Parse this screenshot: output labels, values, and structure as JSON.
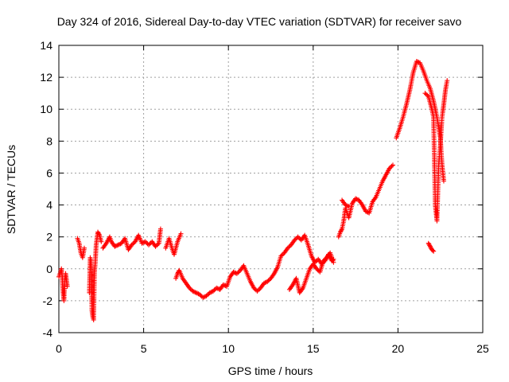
{
  "chart_data": {
    "type": "scatter",
    "title": "Day 324 of 2016, Sidereal Day-to-day VTEC variation (SDTVAR) for receiver savo",
    "xlabel": "GPS time / hours",
    "ylabel": "SDTVAR / TECUs",
    "xlim": [
      0,
      25
    ],
    "ylim": [
      -4,
      14
    ],
    "xticks": [
      0,
      5,
      10,
      15,
      20,
      25
    ],
    "yticks": [
      -4,
      -2,
      0,
      2,
      4,
      6,
      8,
      10,
      12,
      14
    ],
    "grid": true,
    "marker": "+",
    "color": "#ff0000",
    "segments": [
      [
        [
          0.0,
          -0.5
        ],
        [
          0.1,
          -0.2
        ],
        [
          0.15,
          0.0
        ],
        [
          0.2,
          -0.5
        ],
        [
          0.25,
          -1.5
        ],
        [
          0.3,
          -2.0
        ],
        [
          0.35,
          -0.8
        ],
        [
          0.4,
          -0.3
        ],
        [
          0.5,
          -1.1
        ]
      ],
      [
        [
          1.1,
          1.9
        ],
        [
          1.2,
          1.6
        ],
        [
          1.3,
          1.0
        ],
        [
          1.4,
          0.7
        ],
        [
          1.5,
          1.3
        ]
      ],
      [
        [
          1.8,
          -1.5
        ],
        [
          1.85,
          0.7
        ],
        [
          1.9,
          0.5
        ],
        [
          1.95,
          -2.6
        ],
        [
          2.0,
          -3.0
        ],
        [
          2.05,
          -3.2
        ],
        [
          2.1,
          -0.2
        ],
        [
          2.15,
          0.4
        ],
        [
          2.2,
          1.5
        ],
        [
          2.3,
          2.3
        ],
        [
          2.4,
          2.1
        ],
        [
          2.5,
          1.7
        ]
      ],
      [
        [
          2.6,
          1.3
        ],
        [
          2.8,
          1.6
        ],
        [
          3.0,
          2.0
        ],
        [
          3.1,
          1.7
        ],
        [
          3.3,
          1.4
        ],
        [
          3.5,
          1.5
        ],
        [
          3.7,
          1.6
        ],
        [
          3.9,
          1.9
        ],
        [
          4.1,
          1.2
        ],
        [
          4.3,
          1.5
        ],
        [
          4.5,
          1.7
        ],
        [
          4.7,
          2.1
        ],
        [
          4.9,
          1.6
        ],
        [
          5.1,
          1.7
        ],
        [
          5.3,
          1.5
        ],
        [
          5.5,
          1.7
        ],
        [
          5.7,
          1.4
        ],
        [
          5.9,
          1.6
        ],
        [
          6.0,
          2.5
        ]
      ],
      [
        [
          6.3,
          1.3
        ],
        [
          6.5,
          1.9
        ],
        [
          6.7,
          1.2
        ],
        [
          6.8,
          0.9
        ],
        [
          7.0,
          1.7
        ],
        [
          7.2,
          2.2
        ]
      ],
      [
        [
          6.9,
          -0.6
        ],
        [
          7.0,
          -0.3
        ],
        [
          7.1,
          -0.1
        ],
        [
          7.3,
          -0.6
        ],
        [
          7.5,
          -0.9
        ],
        [
          7.7,
          -1.2
        ],
        [
          7.9,
          -1.4
        ],
        [
          8.1,
          -1.5
        ],
        [
          8.3,
          -1.6
        ],
        [
          8.5,
          -1.8
        ],
        [
          8.7,
          -1.7
        ],
        [
          8.9,
          -1.5
        ],
        [
          9.1,
          -1.4
        ],
        [
          9.3,
          -1.2
        ],
        [
          9.5,
          -1.3
        ],
        [
          9.7,
          -1.0
        ],
        [
          9.9,
          -1.1
        ],
        [
          10.1,
          -0.5
        ],
        [
          10.3,
          -0.2
        ],
        [
          10.5,
          -0.3
        ],
        [
          10.7,
          -0.1
        ],
        [
          10.9,
          0.2
        ],
        [
          11.1,
          -0.3
        ],
        [
          11.3,
          -0.8
        ],
        [
          11.5,
          -1.2
        ],
        [
          11.7,
          -1.4
        ],
        [
          11.9,
          -1.2
        ],
        [
          12.1,
          -0.9
        ],
        [
          12.3,
          -0.8
        ],
        [
          12.5,
          -0.6
        ],
        [
          12.7,
          -0.3
        ],
        [
          12.9,
          0.1
        ],
        [
          13.1,
          0.8
        ],
        [
          13.3,
          1.0
        ],
        [
          13.5,
          1.3
        ],
        [
          13.7,
          1.5
        ],
        [
          13.9,
          1.8
        ],
        [
          14.1,
          2.0
        ],
        [
          14.3,
          1.8
        ],
        [
          14.5,
          2.1
        ],
        [
          14.7,
          1.5
        ],
        [
          14.9,
          0.8
        ],
        [
          15.1,
          0.4
        ],
        [
          15.3,
          0.6
        ],
        [
          15.5,
          0.3
        ],
        [
          15.7,
          0.5
        ],
        [
          15.9,
          0.9
        ],
        [
          16.1,
          0.5
        ],
        [
          16.2,
          0.6
        ]
      ],
      [
        [
          13.6,
          -1.3
        ],
        [
          13.8,
          -1.0
        ],
        [
          14.0,
          -0.6
        ],
        [
          14.2,
          -1.5
        ],
        [
          14.4,
          -1.2
        ],
        [
          14.6,
          -0.6
        ],
        [
          14.8,
          0.0
        ],
        [
          15.0,
          0.3
        ],
        [
          15.2,
          0.0
        ],
        [
          15.4,
          -0.2
        ],
        [
          15.6,
          0.5
        ],
        [
          15.8,
          0.7
        ],
        [
          16.0,
          1.0
        ],
        [
          16.2,
          0.4
        ]
      ],
      [
        [
          16.5,
          2.0
        ],
        [
          16.6,
          2.3
        ],
        [
          16.7,
          2.5
        ],
        [
          16.8,
          3.0
        ],
        [
          16.9,
          3.8
        ],
        [
          17.0,
          3.5
        ],
        [
          17.1,
          3.2
        ],
        [
          17.3,
          4.1
        ],
        [
          17.5,
          4.4
        ],
        [
          17.7,
          4.3
        ],
        [
          17.9,
          4.0
        ],
        [
          18.1,
          3.6
        ],
        [
          18.3,
          3.5
        ],
        [
          18.5,
          4.2
        ],
        [
          18.7,
          4.5
        ],
        [
          18.9,
          5.0
        ],
        [
          19.1,
          5.5
        ],
        [
          19.3,
          5.9
        ],
        [
          19.5,
          6.3
        ],
        [
          19.7,
          6.5
        ]
      ],
      [
        [
          16.7,
          4.3
        ],
        [
          16.9,
          4.0
        ],
        [
          17.1,
          3.9
        ]
      ],
      [
        [
          19.9,
          8.2
        ],
        [
          20.1,
          8.8
        ],
        [
          20.3,
          9.5
        ],
        [
          20.5,
          10.3
        ],
        [
          20.7,
          11.2
        ],
        [
          20.9,
          12.3
        ],
        [
          21.1,
          13.0
        ],
        [
          21.3,
          12.9
        ],
        [
          21.5,
          12.4
        ],
        [
          21.7,
          11.8
        ],
        [
          21.9,
          11.3
        ],
        [
          22.1,
          10.5
        ],
        [
          22.3,
          9.5
        ],
        [
          22.5,
          8.2
        ],
        [
          22.6,
          6.5
        ],
        [
          22.7,
          5.5
        ]
      ],
      [
        [
          21.6,
          11.0
        ],
        [
          21.8,
          10.8
        ],
        [
          22.0,
          10.0
        ],
        [
          22.1,
          9.5
        ],
        [
          22.2,
          4.0
        ],
        [
          22.3,
          3.0
        ],
        [
          22.4,
          6.5
        ],
        [
          22.5,
          7.8
        ],
        [
          22.6,
          9.5
        ],
        [
          22.7,
          10.3
        ],
        [
          22.8,
          11.2
        ],
        [
          22.9,
          11.8
        ]
      ],
      [
        [
          21.8,
          1.6
        ],
        [
          21.9,
          1.4
        ],
        [
          22.0,
          1.2
        ],
        [
          22.1,
          1.1
        ]
      ]
    ]
  }
}
